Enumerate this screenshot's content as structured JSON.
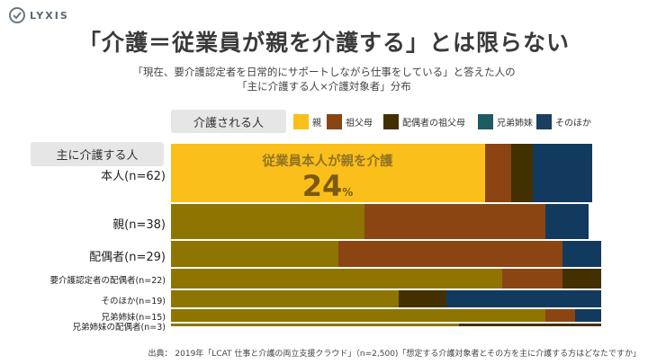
{
  "brand": {
    "name": "LYXIS"
  },
  "header": {
    "title": "「介護＝従業員が親を介護する」とは限らない",
    "subtitle_line1": "「現在、要介護認定者を日常的にサポートしながら仕事をしている」と答えた人の",
    "subtitle_line2": "「主に介護する人×介護対象者」分布"
  },
  "legend_label": "介護される人",
  "axis_label": "主に介護する人",
  "callout": {
    "text": "従業員本人が親を介護",
    "value": "24",
    "unit": "%"
  },
  "source": "出典： 2019年「LCAT 仕事と介護の両立支援クラウド」（n=2,500)「想定する介護対象者とその方を主に介護する方はどなたですか」",
  "colors": {
    "parent": "#fbbf1b",
    "grandparent": "#8b4513",
    "spouse_grandparent": "#433000",
    "siblings": "#1e5b62",
    "other": "#123a5e",
    "col_parent": "#8e7400",
    "col_other": "#1a3f63"
  },
  "chart_data": {
    "type": "bar",
    "orientation": "horizontal",
    "stacked": true,
    "variable_width": true,
    "xlim": [
      0,
      100
    ],
    "legend_position": "top",
    "categories": [
      "本人(n=62)",
      "親(n=38)",
      "配偶者(n=29)",
      "要介護認定者の配偶者(n=22)",
      "そのほか(n=19)",
      "兄弟姉妹(n=15)",
      "兄弟姉妹の配偶者(n=3)"
    ],
    "n": [
      62,
      38,
      29,
      22,
      19,
      15,
      3
    ],
    "series": [
      {
        "name": "親",
        "values": [
          73,
          45,
          39,
          77,
          53,
          87,
          67
        ]
      },
      {
        "name": "祖父母",
        "values": [
          6,
          42,
          52,
          14,
          0,
          7,
          0
        ]
      },
      {
        "name": "配偶者の祖父母",
        "values": [
          5,
          0,
          0,
          9,
          11,
          0,
          33
        ]
      },
      {
        "name": "兄弟姉妹",
        "values": [
          0,
          0,
          0,
          0,
          0,
          0,
          0
        ]
      },
      {
        "name": "そのほか",
        "values": [
          14,
          10,
          9,
          0,
          36,
          6,
          0
        ]
      }
    ]
  }
}
